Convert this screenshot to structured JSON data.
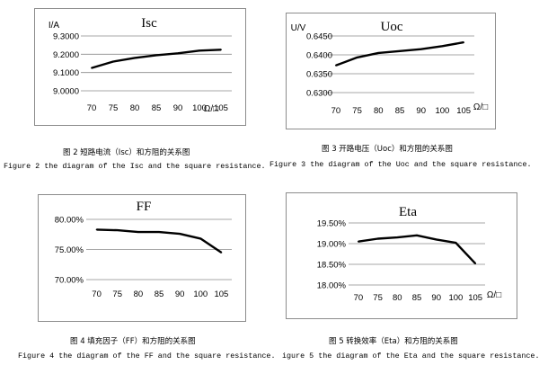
{
  "charts": [
    {
      "id": "isc",
      "caption_cn": "图 2  短路电流（Isc）和方阻的关系图",
      "caption_en": "Figure 2 the diagram of the Isc and the square resistance.",
      "chart_data": {
        "type": "line",
        "title": "Isc",
        "ylabel": "I/A",
        "xlabel": "Ω/□",
        "categories": [
          "70",
          "75",
          "80",
          "85",
          "90",
          "100",
          "105"
        ],
        "values": [
          9.125,
          9.16,
          9.18,
          9.195,
          9.205,
          9.22,
          9.225
        ],
        "ylim": [
          9.0,
          9.3
        ],
        "yticks": [
          "9.0000",
          "9.1000",
          "9.2000",
          "9.3000"
        ],
        "grid": true
      }
    },
    {
      "id": "uoc",
      "caption_cn": "图 3  开路电压（Uoc）和方阻的关系图",
      "caption_en": "Figure 3 the diagram of the Uoc and the square resistance.",
      "chart_data": {
        "type": "line",
        "title": "Uoc",
        "ylabel": "U/V",
        "xlabel": "Ω/□",
        "categories": [
          "70",
          "75",
          "80",
          "85",
          "90",
          "100",
          "105"
        ],
        "values": [
          0.6372,
          0.6393,
          0.6405,
          0.641,
          0.6415,
          0.6423,
          0.6433
        ],
        "ylim": [
          0.63,
          0.645
        ],
        "yticks": [
          "0.6300",
          "0.6350",
          "0.6400",
          "0.6450"
        ],
        "grid": true
      }
    },
    {
      "id": "ff",
      "caption_cn": "图 4  填充因子（FF）和方阻的关系图",
      "caption_en": "Figure 4 the diagram of the FF and the square resistance.",
      "chart_data": {
        "type": "line",
        "title": "FF",
        "ylabel": "",
        "xlabel": "",
        "categories": [
          "70",
          "75",
          "80",
          "85",
          "90",
          "100",
          "105"
        ],
        "values": [
          78.3,
          78.2,
          77.9,
          77.9,
          77.6,
          76.8,
          74.5
        ],
        "ylim": [
          70,
          80
        ],
        "yticks": [
          "70.00%",
          "75.00%",
          "80.00%"
        ],
        "grid": true
      }
    },
    {
      "id": "eta",
      "caption_cn": "图 5  转换效率（Eta）和方阻的关系图",
      "caption_en": "igure 5 the diagram of the Eta and the square resistance.",
      "chart_data": {
        "type": "line",
        "title": "Eta",
        "ylabel": "",
        "xlabel": "Ω/□",
        "categories": [
          "70",
          "75",
          "80",
          "85",
          "90",
          "100",
          "105"
        ],
        "values": [
          19.05,
          19.12,
          19.15,
          19.2,
          19.1,
          19.02,
          18.52
        ],
        "ylim": [
          18.0,
          19.5
        ],
        "yticks": [
          "18.00%",
          "18.50%",
          "19.00%",
          "19.50%"
        ],
        "grid": true
      }
    }
  ]
}
